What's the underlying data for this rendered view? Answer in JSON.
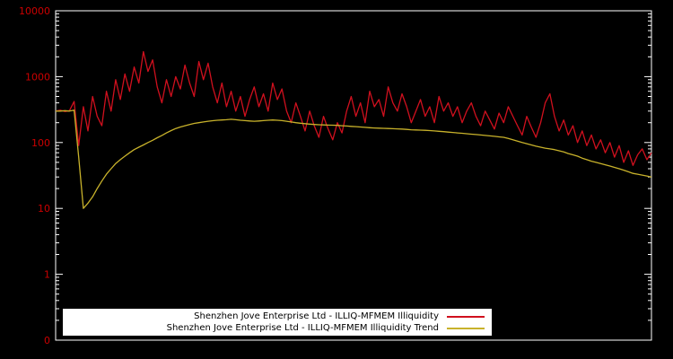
{
  "chart_data": {
    "type": "line",
    "title": "",
    "xlabel": "",
    "ylabel": "",
    "y_scale": "log",
    "ylim": [
      0.1,
      10000
    ],
    "y_ticks": [
      "10000",
      "1000",
      "100",
      "10",
      "1",
      "0"
    ],
    "y_tick_values": [
      10000,
      1000,
      100,
      10,
      1,
      0.1
    ],
    "grid": false,
    "background": "#000000",
    "frame_color": "#ffffff",
    "tick_label_color": "#cc0000",
    "legend_position": "bottom-center",
    "series": [
      {
        "name": "Shenzhen Jove Enterprise Ltd - ILLIQ-MFMEM Illiquidity",
        "color": "#d0101e",
        "values": [
          300,
          310,
          295,
          305,
          420,
          90,
          350,
          150,
          500,
          250,
          180,
          600,
          300,
          900,
          450,
          1100,
          600,
          1400,
          800,
          2400,
          1200,
          1800,
          700,
          400,
          900,
          500,
          1000,
          650,
          1500,
          800,
          500,
          1700,
          900,
          1600,
          700,
          400,
          800,
          350,
          600,
          300,
          500,
          250,
          450,
          700,
          350,
          550,
          300,
          800,
          450,
          650,
          300,
          200,
          400,
          250,
          150,
          300,
          180,
          120,
          250,
          160,
          110,
          200,
          140,
          300,
          500,
          250,
          400,
          200,
          600,
          350,
          450,
          250,
          700,
          400,
          300,
          550,
          350,
          200,
          300,
          450,
          250,
          350,
          200,
          500,
          300,
          400,
          250,
          350,
          200,
          300,
          400,
          250,
          180,
          300,
          220,
          160,
          280,
          200,
          350,
          250,
          180,
          130,
          250,
          170,
          120,
          200,
          400,
          550,
          250,
          150,
          220,
          130,
          180,
          100,
          150,
          90,
          130,
          80,
          110,
          70,
          100,
          60,
          90,
          50,
          75,
          45,
          65,
          80,
          55,
          70
        ]
      },
      {
        "name": "Shenzhen Jove Enterprise Ltd - ILLIQ-MFMEM Illiquidity Trend",
        "color": "#c8b22b",
        "values": [
          300,
          300,
          305,
          300,
          310,
          60,
          10,
          12,
          15,
          20,
          26,
          33,
          40,
          48,
          55,
          62,
          70,
          78,
          85,
          92,
          100,
          108,
          118,
          128,
          140,
          152,
          163,
          172,
          180,
          188,
          195,
          200,
          205,
          210,
          214,
          218,
          220,
          222,
          225,
          222,
          218,
          215,
          212,
          210,
          212,
          215,
          218,
          220,
          218,
          215,
          210,
          205,
          200,
          196,
          193,
          190,
          188,
          186,
          185,
          184,
          183,
          182,
          180,
          178,
          176,
          174,
          172,
          170,
          168,
          166,
          165,
          164,
          163,
          162,
          161,
          160,
          158,
          156,
          155,
          154,
          153,
          152,
          150,
          148,
          146,
          144,
          142,
          140,
          138,
          136,
          134,
          132,
          130,
          128,
          126,
          124,
          122,
          120,
          115,
          110,
          105,
          100,
          96,
          92,
          88,
          85,
          82,
          80,
          78,
          75,
          72,
          68,
          65,
          62,
          58,
          55,
          52,
          50,
          48,
          46,
          44,
          42,
          40,
          38,
          36,
          34,
          33,
          32,
          31,
          30
        ]
      }
    ]
  },
  "legend": {
    "background": "#ffffff",
    "text_color": "#000000",
    "entries": [
      {
        "label": "Shenzhen Jove Enterprise Ltd - ILLIQ-MFMEM Illiquidity",
        "color": "#d0101e"
      },
      {
        "label": "Shenzhen Jove Enterprise Ltd - ILLIQ-MFMEM Illiquidity Trend",
        "color": "#c8b22b"
      }
    ]
  }
}
